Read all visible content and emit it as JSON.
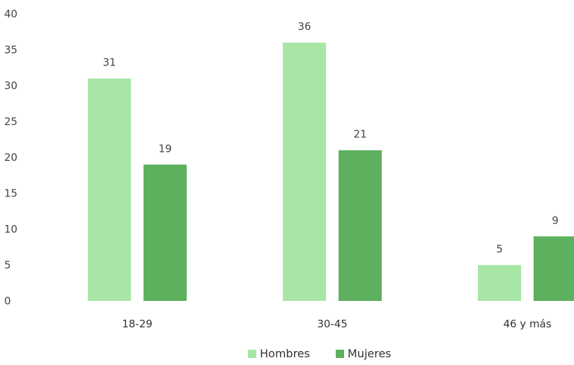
{
  "chart_data": {
    "type": "bar",
    "categories": [
      "18-29",
      "30-45",
      "46 y más"
    ],
    "series": [
      {
        "name": "Hombres",
        "values": [
          31,
          36,
          5
        ],
        "color": "#a8e6a6"
      },
      {
        "name": "Mujeres",
        "values": [
          19,
          21,
          9
        ],
        "color": "#5db05d"
      }
    ],
    "yticks": [
      "0",
      "5",
      "10",
      "15",
      "20",
      "25",
      "30",
      "35",
      "40"
    ],
    "ylim": [
      0,
      40
    ],
    "grid": false,
    "legend_position": "bottom-center"
  }
}
